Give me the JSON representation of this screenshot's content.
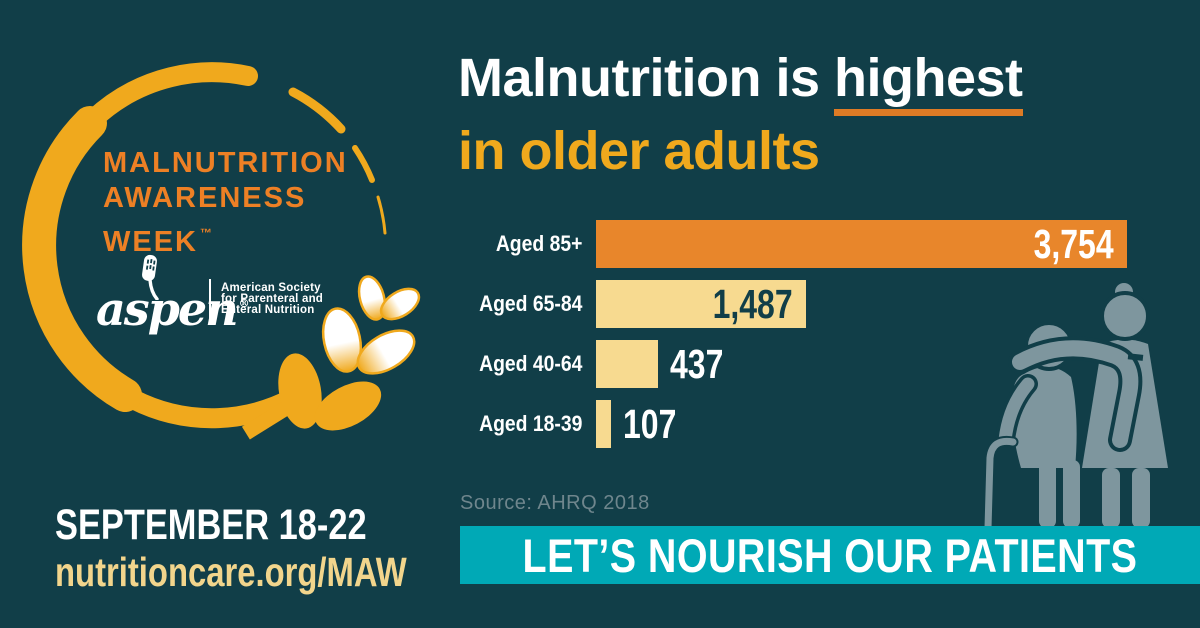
{
  "page": {
    "background_color": "#113E48",
    "accent_orange": "#E8862B",
    "accent_gold": "#F0A91D",
    "accent_cream": "#F7DA90",
    "accent_teal": "#00A9B6",
    "silhouette_gray": "#7E969E"
  },
  "logo": {
    "title_lines": [
      "MALNUTRITION",
      "AWARENESS",
      "WEEK"
    ],
    "tm": "™",
    "title_color": "#ED8025",
    "arc_color": "#F0A91D",
    "aspen_wordmark": "aspen",
    "aspen_reg": "®",
    "aspen_org_lines": [
      "American Society",
      "for Parenteral and",
      "Enteral Nutrition"
    ],
    "icons": [
      "circle-brush-arc-icon",
      "wheat-paddle-icon",
      "wheat-grains-icon"
    ]
  },
  "footer_left": {
    "dates": "SEPTEMBER 18-22",
    "url": "nutritioncare.org/MAW"
  },
  "headline": {
    "line1_prefix": "Malnutrition is ",
    "line1_underlined": "highest",
    "line2": "in older adults",
    "underline_color": "#DE7B25"
  },
  "chart_data": {
    "type": "bar",
    "orientation": "horizontal",
    "title": "Malnutrition is highest in older adults",
    "categories": [
      "Aged 85+",
      "Aged 65-84",
      "Aged 40-64",
      "Aged 18-39"
    ],
    "values": [
      3754,
      1487,
      437,
      107
    ],
    "value_labels": [
      "3,754",
      "1,487",
      "437",
      "107"
    ],
    "bar_colors": [
      "#E8862B",
      "#F7DA90",
      "#F7DA90",
      "#F7DA90"
    ],
    "value_label_colors": [
      "#FFFFFF",
      "#113E48",
      "#FFFFFF",
      "#FFFFFF"
    ],
    "value_label_inside": [
      true,
      true,
      false,
      false
    ],
    "xlim": [
      0,
      3754
    ],
    "grid": false,
    "legend": false,
    "source": "Source: AHRQ 2018"
  },
  "banner": {
    "text": "LET’S NOURISH OUR PATIENTS",
    "background": "#00A9B6"
  },
  "illustration": {
    "name": "caregiver-with-elderly-patient-silhouette",
    "color": "#7E969E"
  }
}
